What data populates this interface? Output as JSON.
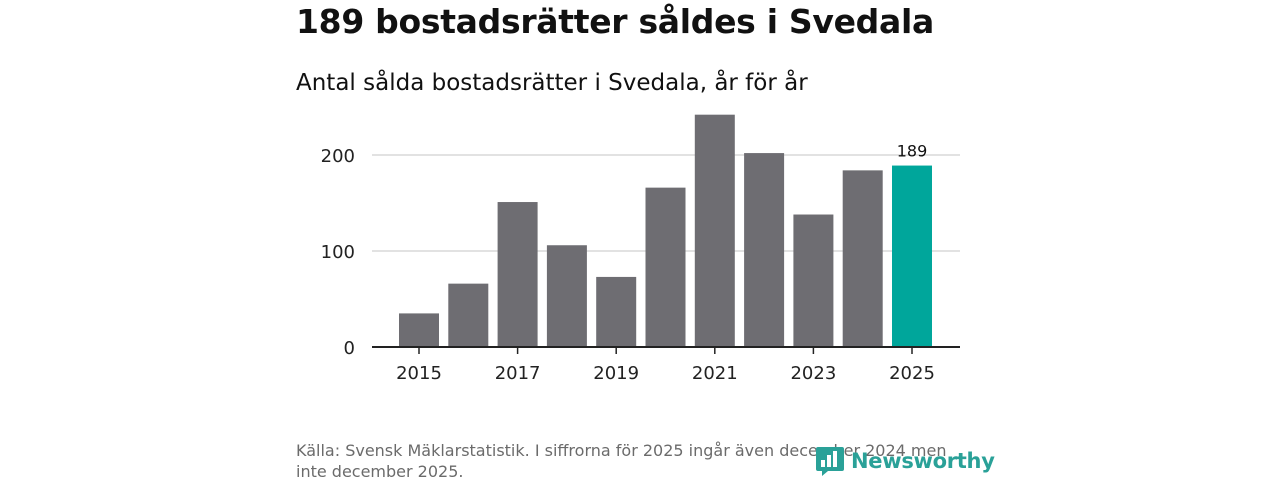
{
  "headline": "189 bostadsrätter såldes i Svedala",
  "subtitle": "Antal sålda bostadsrätter i Svedala, år för år",
  "source": "Källa: Svensk Mäklarstatistik. I siffrorna för 2025 ingår även december 2024 men inte december 2025.",
  "brand": {
    "name": "Newsworthy",
    "logo_icon": "newsworthy-logo-icon",
    "color": "#2aa198"
  },
  "chart_data": {
    "type": "bar",
    "title": "Antal sålda bostadsrätter i Svedala, år för år",
    "xlabel": "",
    "ylabel": "",
    "categories": [
      "2015",
      "2016",
      "2017",
      "2018",
      "2019",
      "2020",
      "2021",
      "2022",
      "2023",
      "2024",
      "2025"
    ],
    "values": [
      35,
      66,
      151,
      106,
      73,
      166,
      242,
      202,
      138,
      184,
      189
    ],
    "ylim": [
      0,
      250
    ],
    "yticks": [
      0,
      100,
      200
    ],
    "xtick_labels": [
      "2015",
      "2017",
      "2019",
      "2021",
      "2023",
      "2025"
    ],
    "highlight_category": "2025",
    "annotations": [
      {
        "category": "2025",
        "label": "189"
      }
    ],
    "grid": true,
    "colors": {
      "bar": "#6e6d72",
      "highlight": "#00a69b",
      "grid": "#d9d9d9",
      "axis": "#222222"
    }
  }
}
